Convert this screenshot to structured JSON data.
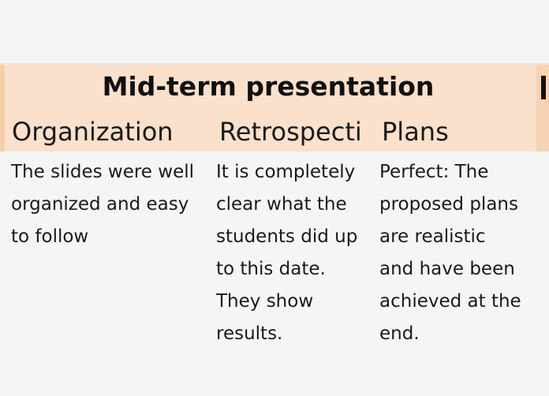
{
  "slide": {
    "title": "Mid-term presentation",
    "columns": [
      {
        "header": "Organization",
        "body": "The slides were well\norganized and easy\nto follow"
      },
      {
        "header": "Retrospecti",
        "body": "It is completely\nclear what the\nstudents did up\nto this date.\nThey show\nresults."
      },
      {
        "header": "Plans",
        "body": "Perfect: The\nproposed plans\nare realistic\nand have been\nachieved at the\nend."
      }
    ]
  },
  "colors": {
    "header_band": "#fbe0cc",
    "background": "#f5f5f5",
    "text": "#1a1a1a"
  }
}
